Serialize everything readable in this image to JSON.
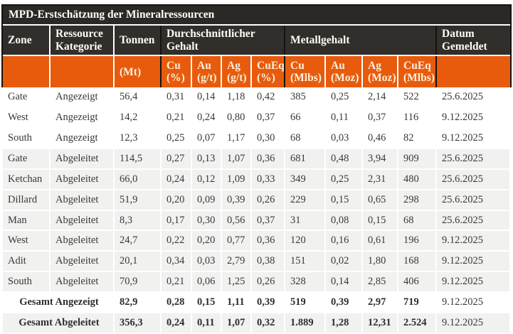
{
  "table": {
    "title": "MPD-Erstschätzung der Mineralressourcen",
    "headers": {
      "zone": "Zone",
      "category": "Ressource\nKategorie",
      "tonnes": "Tonnen",
      "grade_group": "Durchschnittlicher\nGehalt",
      "metal_group": "Metallgehalt",
      "date": "Datum\nGemeldet",
      "units": [
        "(Mt)",
        "Cu\n(%)",
        "Au\n(g/t)",
        "Ag\n(g/t)",
        "CuEq\n(%)",
        "Cu\n(Mlbs)",
        "Au\n(Moz)",
        "Ag\n(Moz)",
        "CuEq\n(Mlbs)"
      ]
    },
    "rows": [
      {
        "zone": "Gate",
        "category": "Angezeigt",
        "tonnes": "56,4",
        "cu_pct": "0,31",
        "au_gt": "0,14",
        "ag_gt": "1,18",
        "cueq_pct": "0,42",
        "cu_mlbs": "385",
        "au_moz": "0,25",
        "ag_moz": "2,14",
        "cueq_mlbs": "522",
        "date": "25.6.2025"
      },
      {
        "zone": "West",
        "category": "Angezeigt",
        "tonnes": "14,2",
        "cu_pct": "0,21",
        "au_gt": "0,24",
        "ag_gt": "0,80",
        "cueq_pct": "0,37",
        "cu_mlbs": "66",
        "au_moz": "0,11",
        "ag_moz": "0,37",
        "cueq_mlbs": "116",
        "date": "9.12.2025"
      },
      {
        "zone": "South",
        "category": "Angezeigt",
        "tonnes": "12,3",
        "cu_pct": "0,25",
        "au_gt": "0,07",
        "ag_gt": "1,17",
        "cueq_pct": "0,30",
        "cu_mlbs": "68",
        "au_moz": "0,03",
        "ag_moz": "0,46",
        "cueq_mlbs": "82",
        "date": "9.12.2025"
      },
      {
        "zone": "Gate",
        "category": "Abgeleitet",
        "tonnes": "114,5",
        "cu_pct": "0,27",
        "au_gt": "0,13",
        "ag_gt": "1,07",
        "cueq_pct": "0,36",
        "cu_mlbs": "681",
        "au_moz": "0,48",
        "ag_moz": "3,94",
        "cueq_mlbs": "909",
        "date": "25.6.2025"
      },
      {
        "zone": "Ketchan",
        "category": "Abgeleitet",
        "tonnes": "66,0",
        "cu_pct": "0,24",
        "au_gt": "0,12",
        "ag_gt": "1,09",
        "cueq_pct": "0,33",
        "cu_mlbs": "349",
        "au_moz": "0,25",
        "ag_moz": "2,31",
        "cueq_mlbs": "480",
        "date": "25.6.2025"
      },
      {
        "zone": "Dillard",
        "category": "Abgeleitet",
        "tonnes": "51,9",
        "cu_pct": "0,20",
        "au_gt": "0,09",
        "ag_gt": "0,39",
        "cueq_pct": "0,26",
        "cu_mlbs": "229",
        "au_moz": "0,15",
        "ag_moz": "0,65",
        "cueq_mlbs": "298",
        "date": "25.6.2025"
      },
      {
        "zone": "Man",
        "category": "Abgeleitet",
        "tonnes": "8,3",
        "cu_pct": "0,17",
        "au_gt": "0,30",
        "ag_gt": "0,56",
        "cueq_pct": "0,37",
        "cu_mlbs": "31",
        "au_moz": "0,08",
        "ag_moz": "0,15",
        "cueq_mlbs": "68",
        "date": "25.6.2025"
      },
      {
        "zone": "West",
        "category": "Abgeleitet",
        "tonnes": "24,7",
        "cu_pct": "0,22",
        "au_gt": "0,20",
        "ag_gt": "0,77",
        "cueq_pct": "0,36",
        "cu_mlbs": "120",
        "au_moz": "0,16",
        "ag_moz": "0,61",
        "cueq_mlbs": "196",
        "date": "9.12.2025"
      },
      {
        "zone": "Adit",
        "category": "Abgeleitet",
        "tonnes": "20,1",
        "cu_pct": "0,34",
        "au_gt": "0,03",
        "ag_gt": "2,79",
        "cueq_pct": "0,38",
        "cu_mlbs": "151",
        "au_moz": "0,02",
        "ag_moz": "1,80",
        "cueq_mlbs": "168",
        "date": "9.12.2025"
      },
      {
        "zone": "South",
        "category": "Abgeleitet",
        "tonnes": "70,9",
        "cu_pct": "0,21",
        "au_gt": "0,06",
        "ag_gt": "1,25",
        "cueq_pct": "0,26",
        "cu_mlbs": "328",
        "au_moz": "0,14",
        "ag_moz": "2,85",
        "cueq_mlbs": "406",
        "date": "9.12.2025"
      }
    ],
    "totals": [
      {
        "label": "Gesamt Angezeigt",
        "tonnes": "82,9",
        "cu_pct": "0,28",
        "au_gt": "0,15",
        "ag_gt": "1,11",
        "cueq_pct": "0,39",
        "cu_mlbs": "519",
        "au_moz": "0,39",
        "ag_moz": "2,97",
        "cueq_mlbs": "719",
        "date": "9.12.2025"
      },
      {
        "label": "Gesamt Abgeleitet",
        "tonnes": "356,3",
        "cu_pct": "0,24",
        "au_gt": "0,11",
        "ag_gt": "1,07",
        "cueq_pct": "0,32",
        "cu_mlbs": "1.889",
        "au_moz": "1,28",
        "ag_moz": "12,31",
        "cueq_mlbs": "2.524",
        "date": "9.12.2025"
      }
    ]
  },
  "colors": {
    "header_bg": "#322E2B",
    "title_bg": "#2B2826",
    "accent_orange": "#E85B0C",
    "unit_text": "#FAF0DC",
    "shaded_row": "#F1F1F0",
    "frame_border": "#161310",
    "body_text": "#383838"
  }
}
